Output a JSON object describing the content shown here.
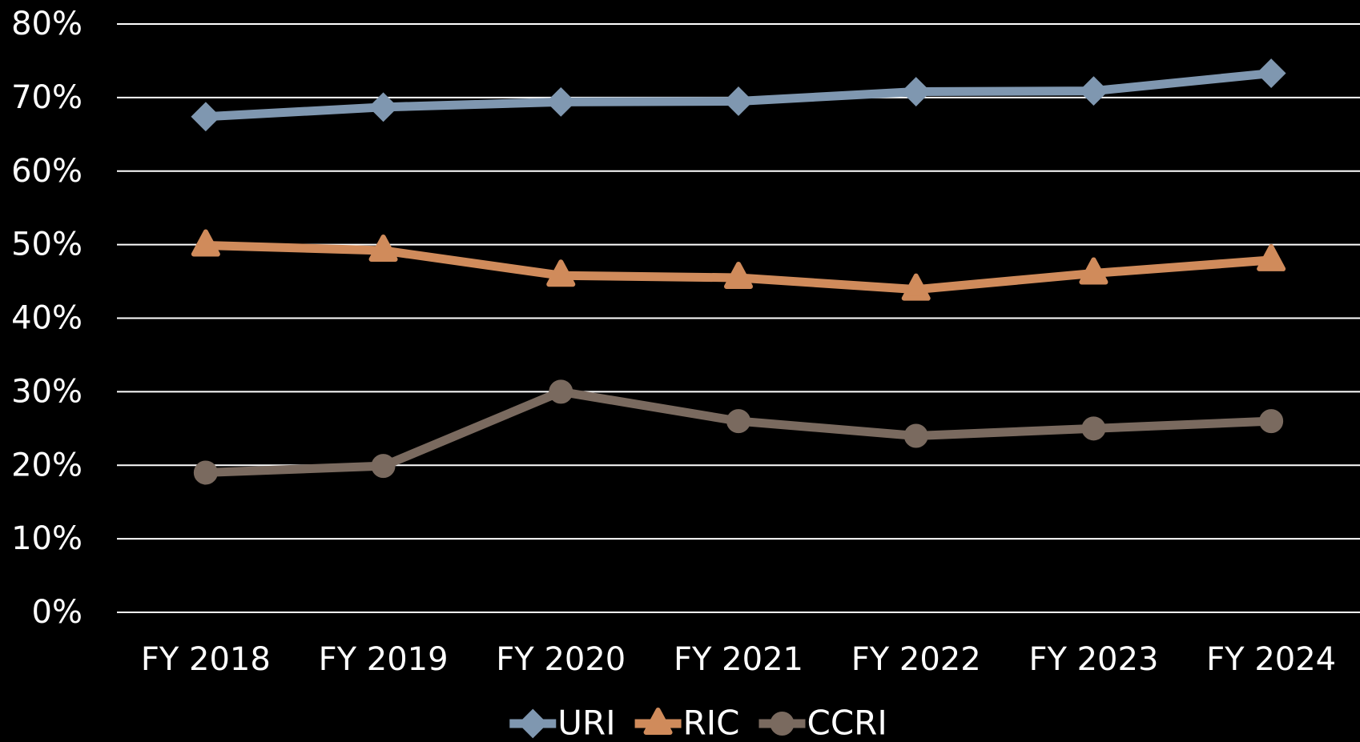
{
  "chart_data": {
    "type": "line",
    "categories": [
      "FY 2018",
      "FY 2019",
      "FY 2020",
      "FY 2021",
      "FY 2022",
      "FY 2023",
      "FY 2024"
    ],
    "series": [
      {
        "name": "URI",
        "color": "#7f97b0",
        "marker": "diamond",
        "values": [
          67.4,
          68.7,
          69.4,
          69.5,
          70.8,
          70.9,
          73.3
        ]
      },
      {
        "name": "RIC",
        "color": "#d08b5b",
        "marker": "triangle",
        "values": [
          49.9,
          49.2,
          45.8,
          45.5,
          43.9,
          46.1,
          47.9
        ]
      },
      {
        "name": "CCRI",
        "color": "#7a6a5f",
        "marker": "circle",
        "values": [
          19.0,
          19.9,
          30.0,
          26.0,
          24.0,
          25.0,
          26.0
        ]
      }
    ],
    "ylim": [
      0,
      80
    ],
    "yticks": [
      {
        "value": 0,
        "label": "0%"
      },
      {
        "value": 10,
        "label": "10%"
      },
      {
        "value": 20,
        "label": "20%"
      },
      {
        "value": 30,
        "label": "30%"
      },
      {
        "value": 40,
        "label": "40%"
      },
      {
        "value": 50,
        "label": "50%"
      },
      {
        "value": 60,
        "label": "60%"
      },
      {
        "value": 70,
        "label": "70%"
      },
      {
        "value": 80,
        "label": "80%"
      }
    ],
    "grid": true,
    "legend": "bottom"
  }
}
